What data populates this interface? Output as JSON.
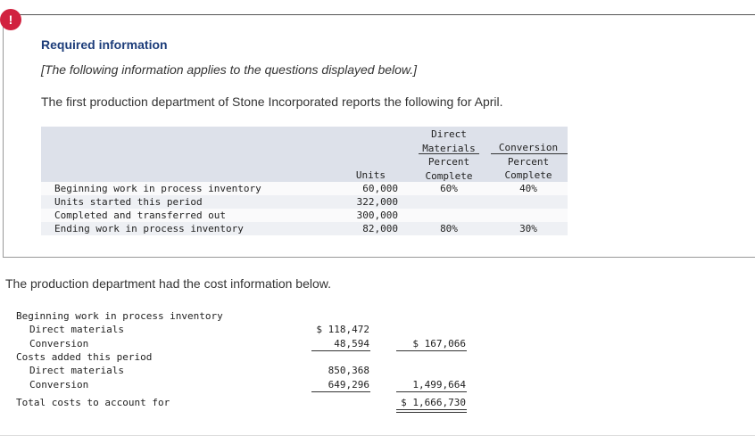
{
  "icon": "!",
  "header": {
    "title": "Required information",
    "note": "[The following information applies to the questions displayed below.]",
    "intro": "The first production department of Stone Incorporated reports the following for April."
  },
  "units_table": {
    "headers": {
      "units": "Units",
      "materials": [
        "Direct",
        "Materials",
        "Percent",
        "Complete"
      ],
      "conversion": [
        "Conversion",
        "Percent",
        "Complete"
      ]
    },
    "rows": [
      {
        "label": "Beginning work in process inventory",
        "units": "60,000",
        "materials": "60%",
        "conversion": "40%"
      },
      {
        "label": "Units started this period",
        "units": "322,000"
      },
      {
        "label": "Completed and transferred out",
        "units": "300,000"
      },
      {
        "label": "Ending work in process inventory",
        "units": "82,000",
        "materials": "80%",
        "conversion": "30%"
      }
    ]
  },
  "cost_intro": "The production department had the cost information below.",
  "cost_table": {
    "rows": [
      {
        "label": "Beginning work in process inventory"
      },
      {
        "label": "Direct materials",
        "indent": true,
        "amount": "$ 118,472"
      },
      {
        "label": "Conversion",
        "indent": true,
        "amount": "48,594",
        "total": "$ 167,066",
        "underline": true
      },
      {
        "label": "Costs added this period"
      },
      {
        "label": "Direct materials",
        "indent": true,
        "amount": "850,368"
      },
      {
        "label": "Conversion",
        "indent": true,
        "amount": "649,296",
        "total": "1,499,664",
        "underline": true
      },
      {
        "label": "Total costs to account for",
        "total": "$ 1,666,730",
        "double": true
      }
    ]
  }
}
